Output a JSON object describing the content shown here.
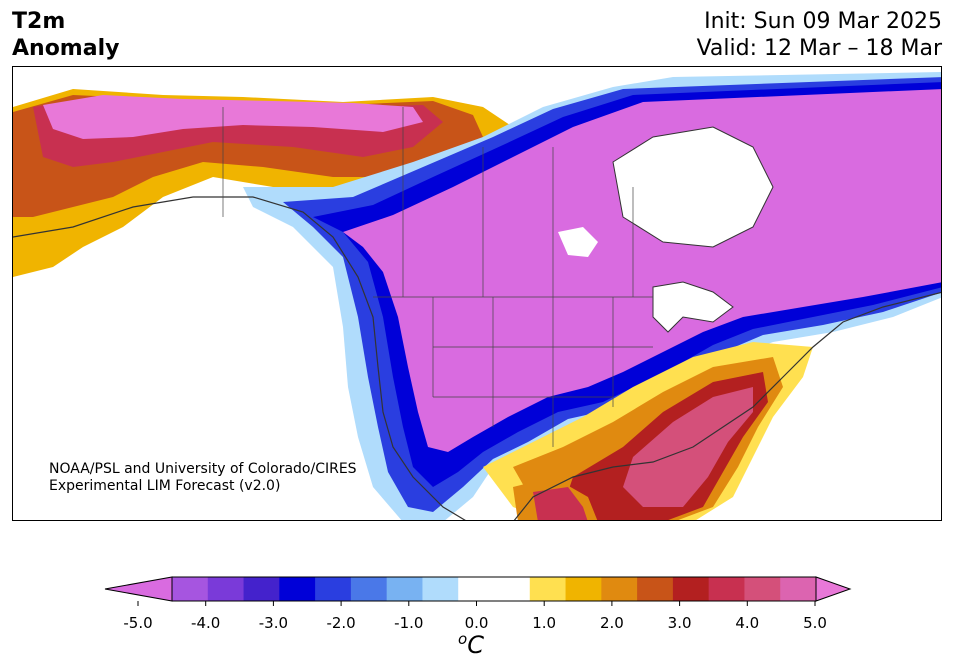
{
  "header": {
    "title_line1": "T2m",
    "title_line2": "Anomaly",
    "init": "Init: Sun 09 Mar 2025",
    "valid": "Valid: 12 Mar – 18 Mar"
  },
  "credit": {
    "line1": "NOAA/PSL and University of Colorado/CIRES",
    "line2": "Experimental LIM Forecast (v2.0)"
  },
  "colorbar": {
    "unit_sup": "o",
    "unit": "C",
    "ticks": [
      "-5.0",
      "-4.0",
      "-3.0",
      "-2.0",
      "-1.0",
      "0.0",
      "1.0",
      "2.0",
      "3.0",
      "4.0",
      "5.0"
    ],
    "colors": [
      "#d96be0",
      "#a655e0",
      "#7a3ad9",
      "#4422cc",
      "#0000d8",
      "#2a3ee0",
      "#4a78e8",
      "#78b2f2",
      "#b0dcfc",
      "#ffffff",
      "#ffffff",
      "#ffe050",
      "#f0b400",
      "#e08a10",
      "#c85418",
      "#b32020",
      "#c83050",
      "#d4507a",
      "#dc64b0",
      "#e878d8"
    ]
  }
}
